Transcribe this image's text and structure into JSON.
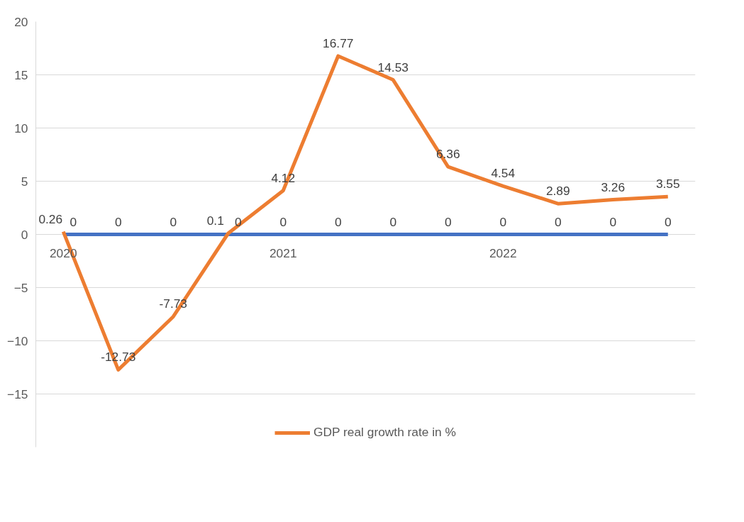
{
  "chart_data": {
    "type": "line",
    "categories": [
      "2020",
      null,
      null,
      null,
      "2021",
      null,
      null,
      null,
      "2022",
      null,
      null,
      null
    ],
    "series": [
      {
        "color": "#4472c4",
        "values": [
          0,
          0,
          0,
          0,
          0,
          0,
          0,
          0,
          0,
          0,
          0,
          0
        ]
      },
      {
        "name": "GDP real growth rate in %",
        "color": "#ed7d31",
        "values": [
          0.26,
          -12.73,
          -7.73,
          0.1,
          4.12,
          16.77,
          14.53,
          6.36,
          4.54,
          2.89,
          3.26,
          3.55
        ]
      }
    ],
    "ylim": [
      -20,
      20
    ],
    "yticks": [
      -15,
      -10,
      -5,
      0,
      5,
      10,
      15,
      20
    ],
    "grid": "y",
    "legend": "bottom",
    "data_labels": true,
    "marker": "none",
    "line_style": "solid"
  }
}
